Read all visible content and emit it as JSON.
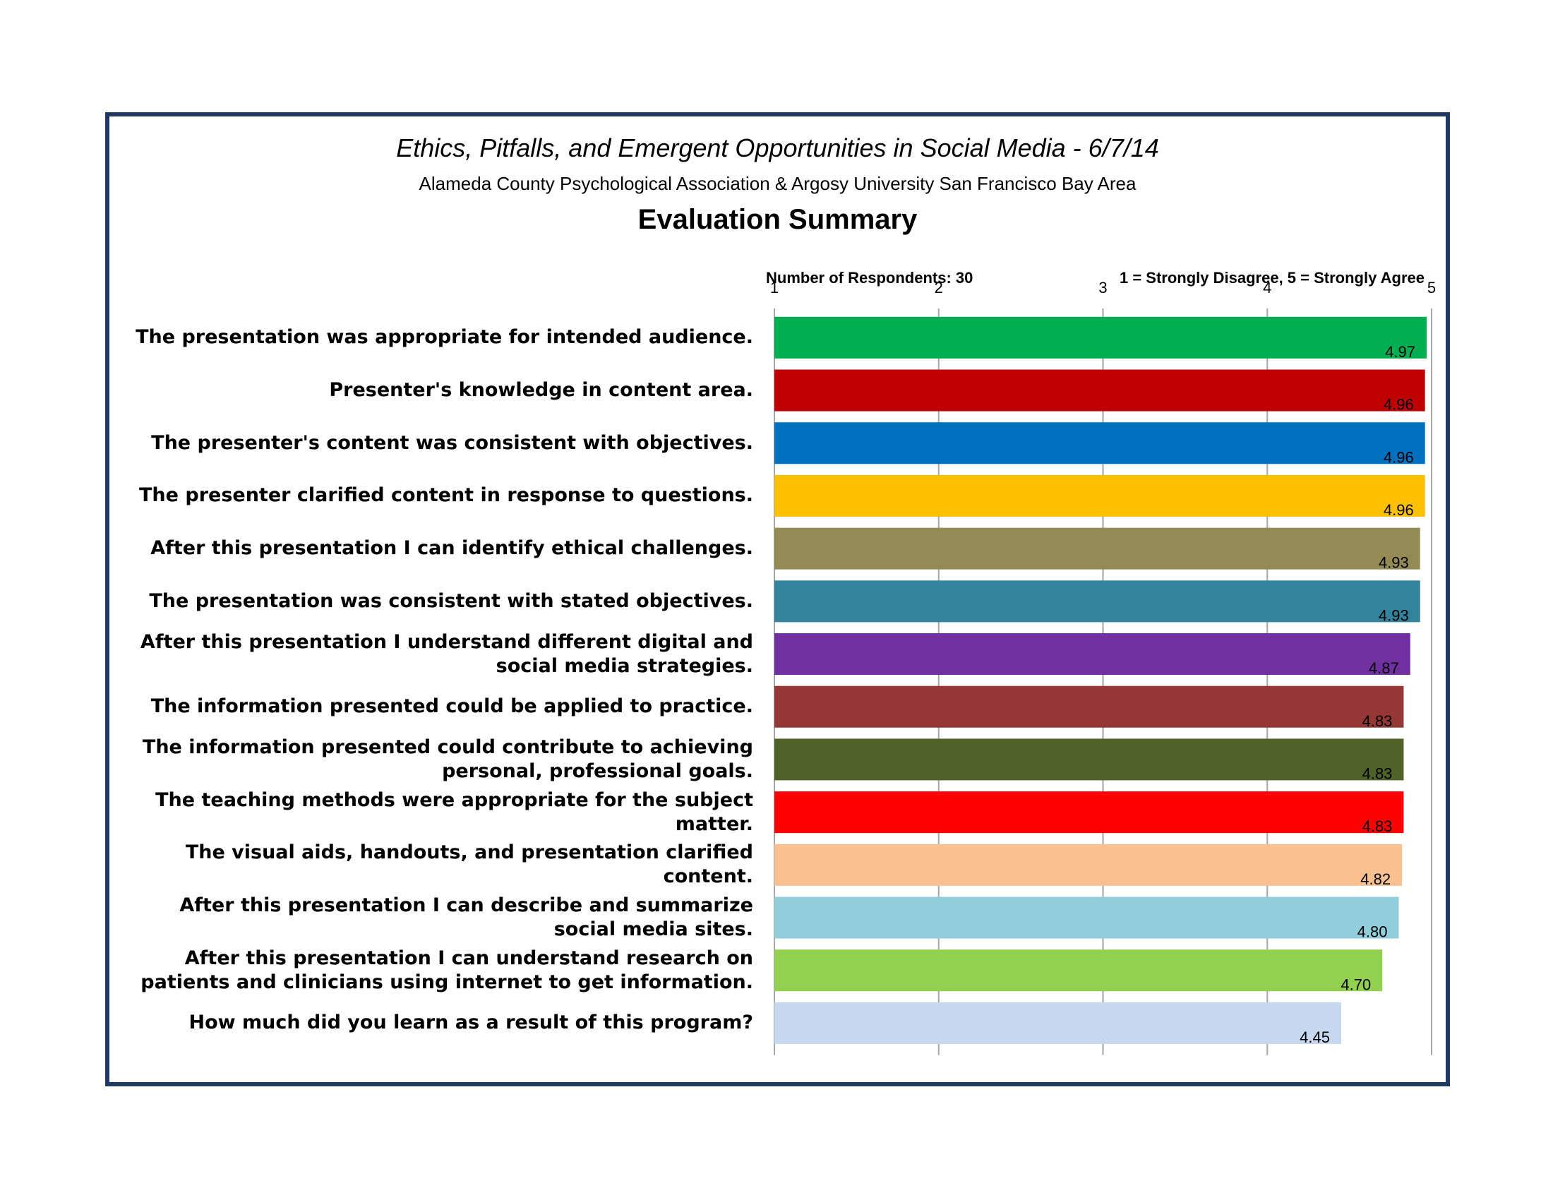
{
  "header": {
    "title": "Ethics, Pitfalls, and Emergent Opportunities in Social Media - 6/7/14",
    "organizations": "Alameda County Psychological Association & Argosy University San Francisco Bay Area",
    "subtitle": "Evaluation Summary"
  },
  "notes": {
    "respondents": "Number of Respondents: 30",
    "scale": "1 = Strongly Disagree, 5 = Strongly Agree"
  },
  "chart_data": {
    "type": "bar",
    "orientation": "horizontal",
    "xlim": [
      1,
      5
    ],
    "ticks": [
      "1",
      "2",
      "3",
      "4",
      "5"
    ],
    "grid": true,
    "categories": [
      "The presentation was appropriate for intended audience.",
      "Presenter's knowledge in content area.",
      "The presenter's content was consistent with objectives.",
      "The presenter clarified content in response to questions.",
      "After this presentation I can  identify ethical challenges.",
      "The presentation was consistent with stated objectives.",
      "After this presentation I understand different digital and social media strategies.",
      "The information presented could be applied to practice.",
      "The information presented could contribute to achieving personal, professional goals.",
      "The teaching methods were appropriate for the subject matter.",
      "The visual aids, handouts, and presentation clarified content.",
      "After this presentation I can describe and summarize social media sites.",
      "After this presentation I can understand research on patients and clinicians using internet to get information.",
      "How much did you learn as a result of this program?"
    ],
    "values": [
      4.97,
      4.96,
      4.96,
      4.96,
      4.93,
      4.93,
      4.87,
      4.83,
      4.83,
      4.83,
      4.82,
      4.8,
      4.7,
      4.45
    ],
    "value_labels": [
      "4.97",
      "4.96",
      "4.96",
      "4.96",
      "4.93",
      "4.93",
      "4.87",
      "4.83",
      "4.83",
      "4.83",
      "4.82",
      "4.80",
      "4.70",
      "4.45"
    ],
    "colors": [
      "#00b050",
      "#c00000",
      "#0070c0",
      "#ffc000",
      "#948a54",
      "#31849b",
      "#7030a0",
      "#953735",
      "#4f6228",
      "#ff0000",
      "#fac090",
      "#92cddc",
      "#92d050",
      "#c6d9f1"
    ],
    "label_lines": [
      [
        "The presentation was appropriate for intended audience."
      ],
      [
        "Presenter's knowledge in content area."
      ],
      [
        "The presenter's content was consistent with objectives."
      ],
      [
        "The presenter clarified content in response to questions."
      ],
      [
        "After this presentation I can  identify ethical challenges."
      ],
      [
        "The presentation was consistent with stated objectives."
      ],
      [
        "After this presentation I understand different digital and",
        "social media strategies."
      ],
      [
        "The information presented could be applied to practice."
      ],
      [
        "The information presented could contribute to achieving",
        "personal, professional goals."
      ],
      [
        "The teaching methods were appropriate for the subject",
        "matter."
      ],
      [
        "The visual aids, handouts, and presentation clarified",
        "content."
      ],
      [
        "After this presentation I can describe and summarize",
        "social media sites."
      ],
      [
        "After this presentation I can understand research on",
        "patients and clinicians using internet to get information."
      ],
      [
        "How much did you learn as a result of this program?"
      ]
    ]
  }
}
